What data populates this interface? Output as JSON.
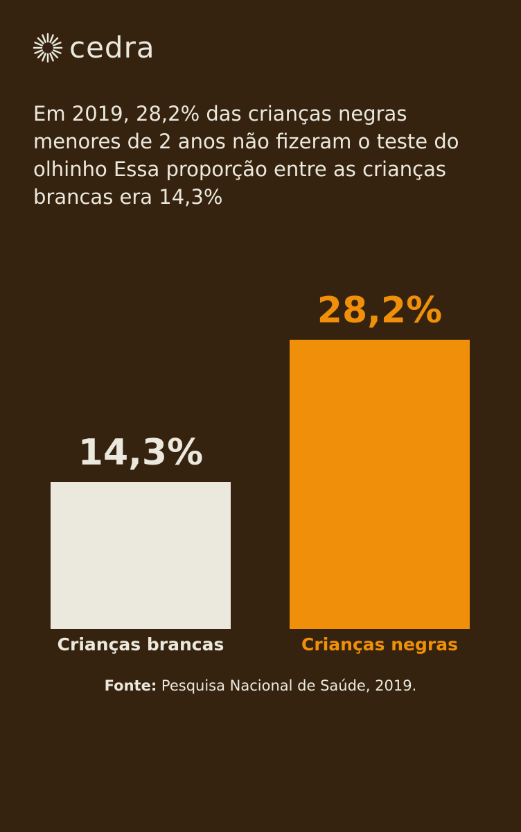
{
  "brand": "cedra",
  "chart_data": {
    "type": "bar",
    "title": "Em 2019, 28,2% das crianças negras menores de 2 anos não fizeram o teste do olhinho Essa proporção entre as crianças brancas era 14,3%",
    "categories": [
      "Crianças brancas",
      "Crianças negras"
    ],
    "values": [
      14.3,
      28.2
    ],
    "value_labels": [
      "14,3%",
      "28,2%"
    ],
    "colors": [
      "#ebe8dd",
      "#f0900a"
    ],
    "source": {
      "label": "Fonte:",
      "text": "Pesquisa Nacional de Saúde, 2019."
    }
  }
}
